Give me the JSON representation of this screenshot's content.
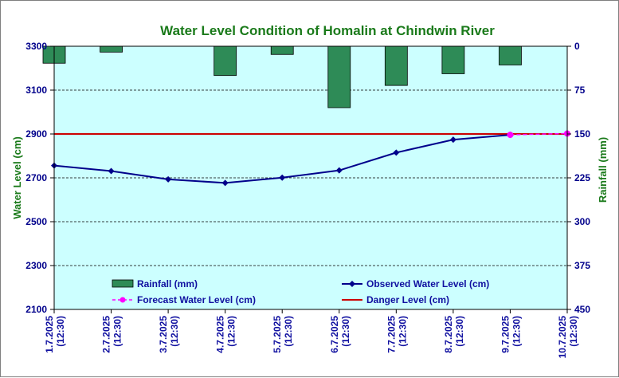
{
  "chart_data": {
    "type": "bar+line",
    "title": "Water Level Condition of Homalin at Chindwin River",
    "y_left_label": "Water Level (cm)",
    "y_right_label": "Rainfall (mm)",
    "y_left_range": [
      2100,
      3300
    ],
    "y_left_ticks": [
      "2100",
      "2300",
      "2500",
      "2700",
      "2900",
      "3100",
      "3300"
    ],
    "y_right_range": [
      0,
      450
    ],
    "y_right_ticks": [
      "450",
      "375",
      "300",
      "225",
      "150",
      "75",
      "0"
    ],
    "y_right_inverted": true,
    "categories": [
      [
        "1.7.2025",
        "(12:30)"
      ],
      [
        "2.7.2025",
        "(12:30)"
      ],
      [
        "3.7.2025",
        "(12:30)"
      ],
      [
        "4.7.2025",
        "(12:30)"
      ],
      [
        "5.7.2025",
        "(12:30)"
      ],
      [
        "6.7.2025",
        "(12:30)"
      ],
      [
        "7.7.2025",
        "(12:30)"
      ],
      [
        "8.7.2025",
        "(12:30)"
      ],
      [
        "9.7.2025",
        "(12:30)"
      ],
      [
        "10.7.2025",
        "(12:30)"
      ]
    ],
    "series": [
      {
        "name": "Rainfall (mm)",
        "kind": "bar",
        "axis": "right",
        "color": "#2e8b57",
        "values": [
          29,
          10,
          null,
          50,
          14,
          105,
          67,
          47,
          32,
          null
        ]
      },
      {
        "name": "Observed Water Level (cm)",
        "kind": "line",
        "axis": "left",
        "color": "#00008b",
        "values": [
          2756,
          2731,
          2693,
          2677,
          2701,
          2734,
          2815,
          2874,
          2896,
          null
        ]
      },
      {
        "name": "Forecast Water Level (cm)",
        "kind": "line-dashed",
        "axis": "left",
        "color": "#ff00ff",
        "values": [
          null,
          null,
          null,
          null,
          null,
          null,
          null,
          null,
          2896,
          2902
        ]
      },
      {
        "name": "Danger Level (cm)",
        "kind": "hline",
        "axis": "left",
        "color": "#cc0000",
        "value": 2900
      }
    ],
    "plot_background": "#ccffff",
    "grid": "horizontal dashed",
    "legend_position": "inside-bottom"
  }
}
